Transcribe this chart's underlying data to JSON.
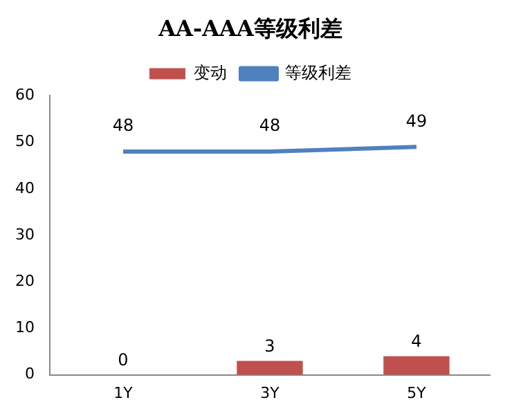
{
  "chart_data": {
    "type": "bar",
    "title": "AA-AAA等级利差",
    "categories": [
      "1Y",
      "3Y",
      "5Y"
    ],
    "series": [
      {
        "name": "变动",
        "color": "#c0504d",
        "values": [
          0,
          3,
          4
        ]
      },
      {
        "name": "等级利差",
        "type": "line",
        "color": "#4f81bd",
        "values": [
          48,
          48,
          49
        ]
      }
    ],
    "ylim": [
      0,
      60
    ],
    "yticks": [
      0,
      10,
      20,
      30,
      40,
      50,
      60
    ],
    "grid": false,
    "legend": "top",
    "data_labels": true,
    "marker": "none"
  }
}
